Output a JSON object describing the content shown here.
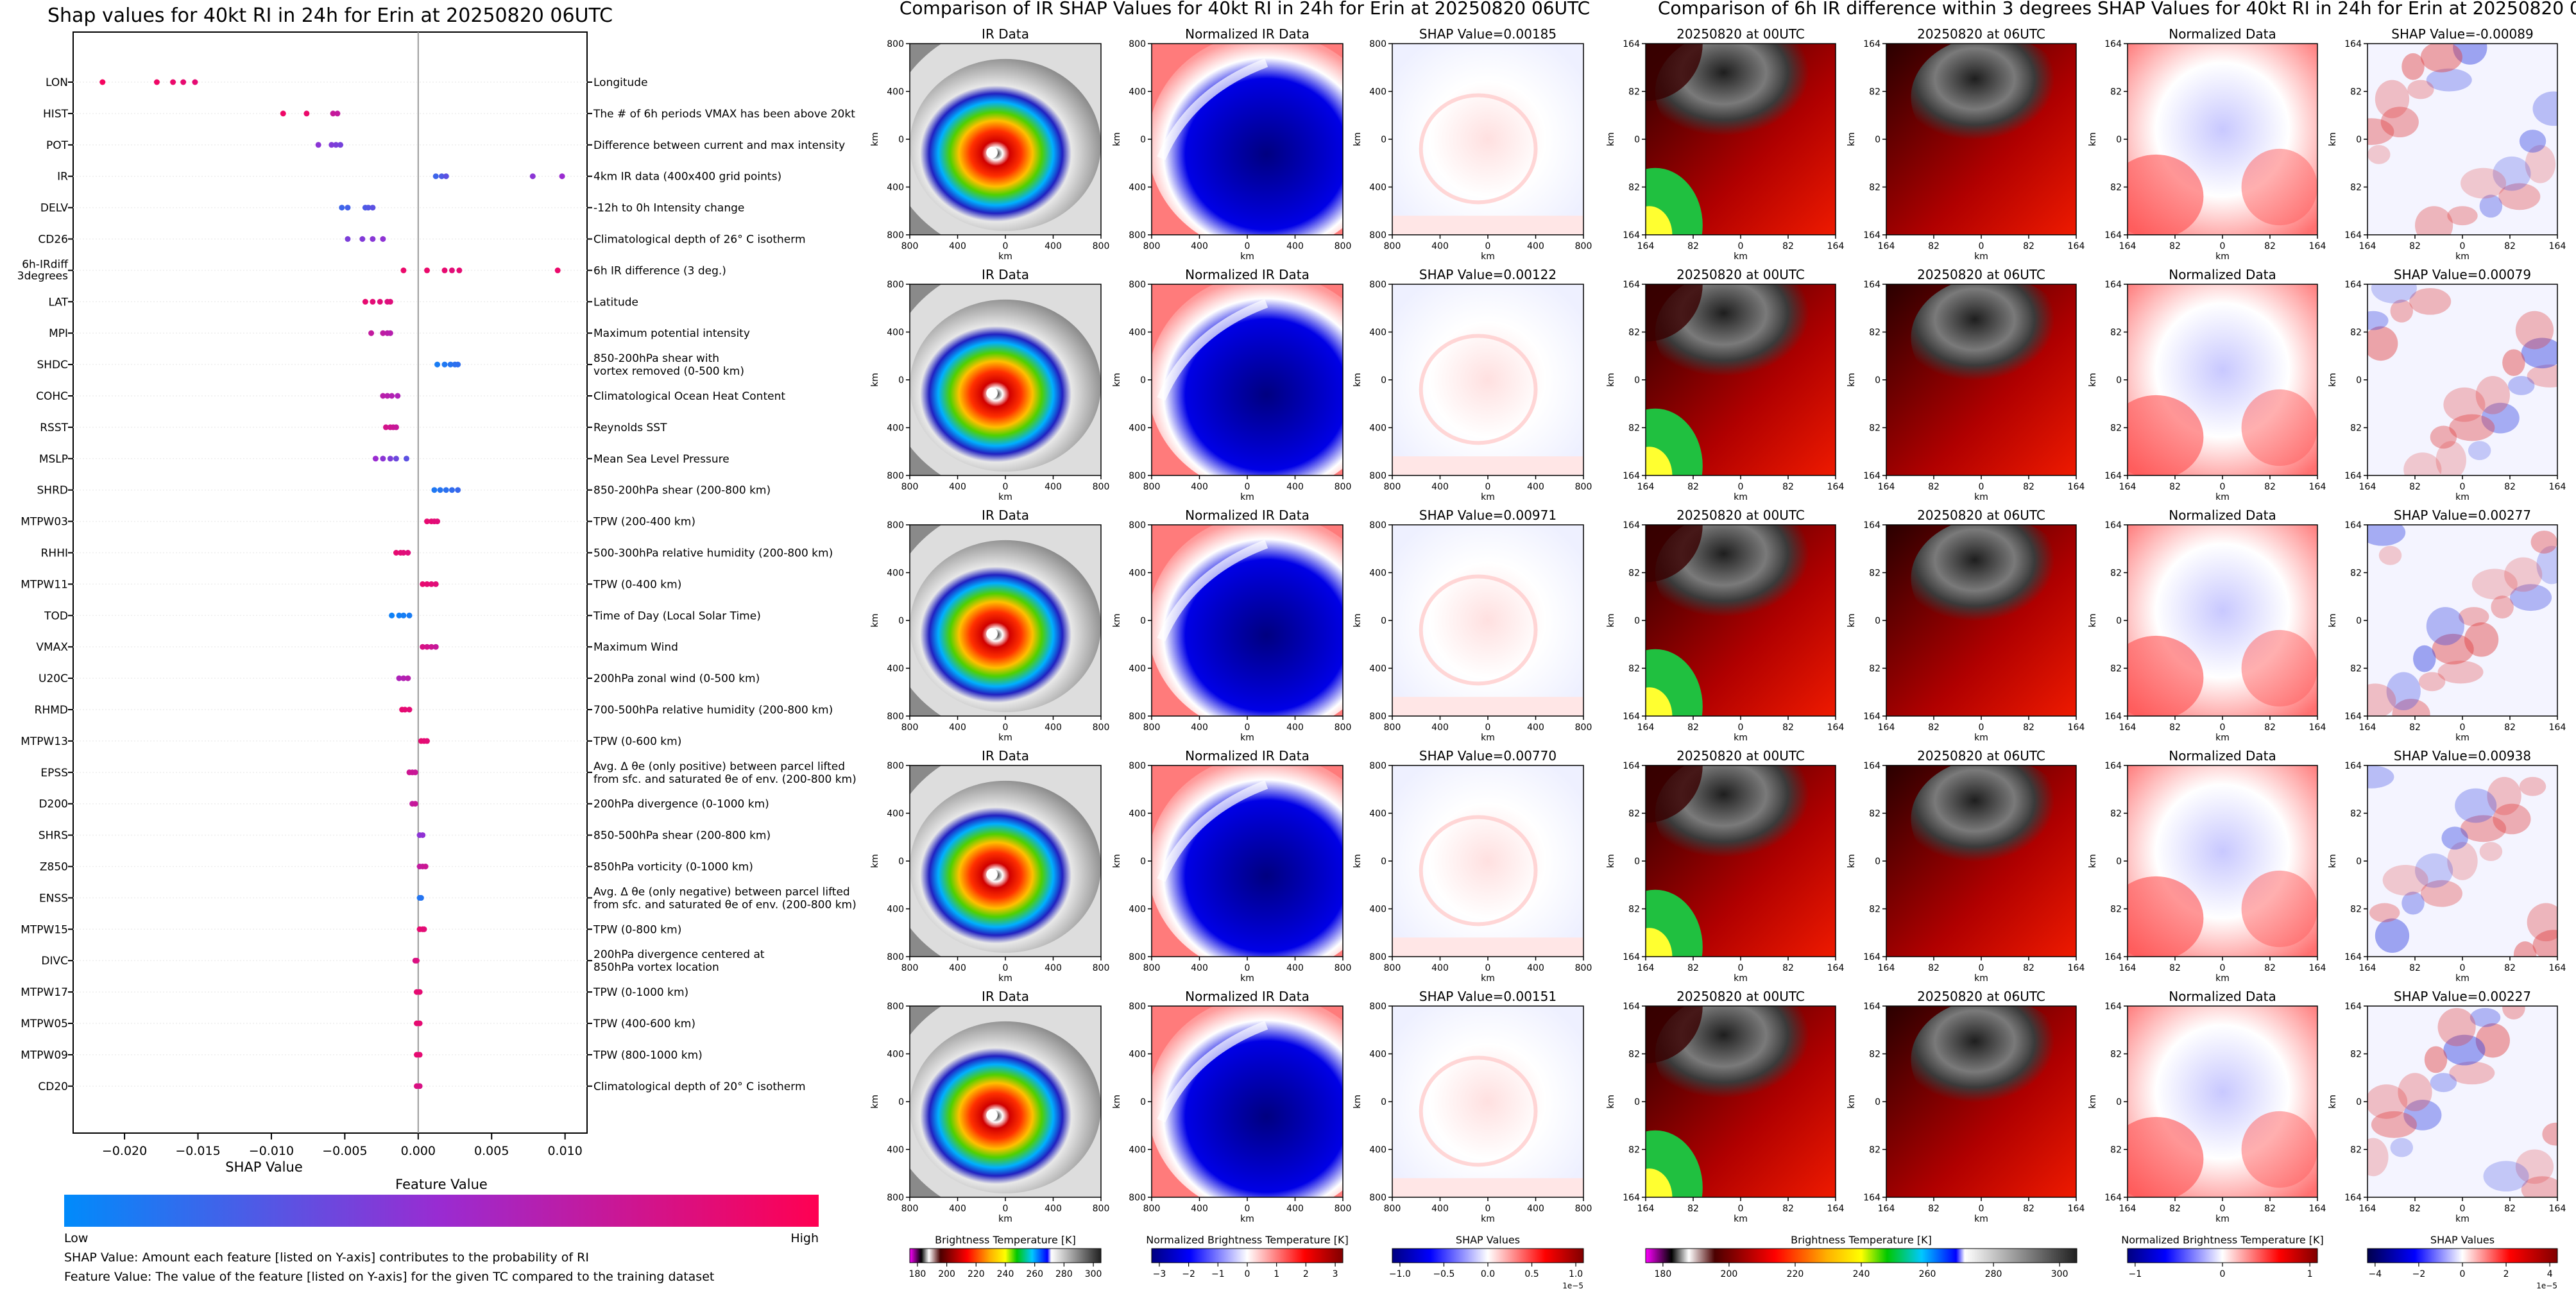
{
  "colors": {
    "feature_low": "#008bfb",
    "feature_mid": "#9a2bd1",
    "feature_high": "#ff0052",
    "shap_neg": "#0b1fd8",
    "shap_pos": "#cc0000"
  },
  "chart_data": [
    {
      "type": "scatter",
      "title": "Shap values for 40kt RI in 24h for Erin at 20250820 06UTC",
      "xlabel": "SHAP Value",
      "xlim": [
        -0.0235,
        0.0115
      ],
      "xticks": [
        -0.02,
        -0.015,
        -0.01,
        -0.005,
        0.0,
        0.005,
        0.01
      ],
      "xtick_labels": [
        "−0.020",
        "−0.015",
        "−0.010",
        "−0.005",
        "0.000",
        "0.005",
        "0.010"
      ],
      "grid": false,
      "features": [
        {
          "name": "LON",
          "desc": "Longitude",
          "values": [
            -0.0215,
            -0.0178,
            -0.0167,
            -0.016,
            -0.0152
          ],
          "fv": [
            0.95,
            0.92,
            0.9,
            0.88,
            0.87
          ]
        },
        {
          "name": "HIST",
          "desc": "The # of 6h periods VMAX has been above 20kt",
          "values": [
            -0.0092,
            -0.0076,
            -0.0058,
            -0.0055
          ],
          "fv": [
            0.92,
            0.9,
            0.72,
            0.7
          ]
        },
        {
          "name": "POT",
          "desc": "Difference between current and max intensity",
          "values": [
            -0.0068,
            -0.0059,
            -0.0056,
            -0.0053
          ],
          "fv": [
            0.45,
            0.42,
            0.4,
            0.38
          ]
        },
        {
          "name": "IR",
          "desc": "4km IR data (400x400 grid points)",
          "values": [
            0.0012,
            0.0016,
            0.0019,
            0.0078,
            0.0098
          ],
          "fv": [
            0.2,
            0.25,
            0.3,
            0.45,
            0.5
          ]
        },
        {
          "name": "DELV",
          "desc": "-12h to 0h Intensity change",
          "values": [
            -0.0052,
            -0.0048,
            -0.0036,
            -0.0034,
            -0.0031
          ],
          "fv": [
            0.2,
            0.22,
            0.25,
            0.27,
            0.3
          ]
        },
        {
          "name": "CD26",
          "desc": "Climatological depth of 26° C isotherm",
          "values": [
            -0.0048,
            -0.0038,
            -0.0031,
            -0.0024
          ],
          "fv": [
            0.4,
            0.42,
            0.44,
            0.46
          ]
        },
        {
          "name": "6h-IRdiff\n3degrees",
          "desc": "6h IR difference (3 deg.)",
          "values": [
            -0.001,
            0.0006,
            0.0018,
            0.0023,
            0.0028,
            0.0095
          ],
          "fv": [
            0.9,
            0.9,
            0.88,
            0.85,
            0.87,
            0.9
          ]
        },
        {
          "name": "LAT",
          "desc": "Latitude",
          "values": [
            -0.0036,
            -0.0031,
            -0.0026,
            -0.0021,
            -0.0019
          ],
          "fv": [
            0.88,
            0.86,
            0.85,
            0.83,
            0.84
          ]
        },
        {
          "name": "MPI",
          "desc": "Maximum potential intensity",
          "values": [
            -0.0032,
            -0.0024,
            -0.0021,
            -0.0019
          ],
          "fv": [
            0.7,
            0.68,
            0.66,
            0.64
          ]
        },
        {
          "name": "SHDC",
          "desc": "850-200hPa shear with\nvortex removed (0-500 km)",
          "values": [
            0.0013,
            0.0018,
            0.0022,
            0.0025,
            0.0027
          ],
          "fv": [
            0.08,
            0.1,
            0.12,
            0.14,
            0.15
          ]
        },
        {
          "name": "COHC",
          "desc": "Climatological Ocean Heat Content",
          "values": [
            -0.0024,
            -0.0021,
            -0.0018,
            -0.0014
          ],
          "fv": [
            0.65,
            0.64,
            0.62,
            0.6
          ]
        },
        {
          "name": "RSST",
          "desc": "Reynolds SST",
          "values": [
            -0.0022,
            -0.0019,
            -0.0017,
            -0.0015
          ],
          "fv": [
            0.78,
            0.76,
            0.74,
            0.72
          ]
        },
        {
          "name": "MSLP",
          "desc": "Mean Sea Level Pressure",
          "values": [
            -0.0029,
            -0.0024,
            -0.0019,
            -0.0015,
            -0.0008
          ],
          "fv": [
            0.5,
            0.45,
            0.4,
            0.35,
            0.3
          ]
        },
        {
          "name": "SHRD",
          "desc": "850-200hPa shear (200-800 km)",
          "values": [
            0.0011,
            0.0015,
            0.0019,
            0.0023,
            0.0027
          ],
          "fv": [
            0.1,
            0.12,
            0.14,
            0.16,
            0.18
          ]
        },
        {
          "name": "MTPW03",
          "desc": "TPW (200-400 km)",
          "values": [
            0.0006,
            0.0009,
            0.0011,
            0.0013
          ],
          "fv": [
            0.88,
            0.87,
            0.86,
            0.85
          ]
        },
        {
          "name": "RHHI",
          "desc": "500-300hPa relative humidity (200-800 km)",
          "values": [
            -0.0015,
            -0.0012,
            -0.001,
            -0.0007
          ],
          "fv": [
            0.88,
            0.86,
            0.85,
            0.84
          ]
        },
        {
          "name": "MTPW11",
          "desc": "TPW (0-400 km)",
          "values": [
            0.0003,
            0.0006,
            0.0009,
            0.0012
          ],
          "fv": [
            0.88,
            0.87,
            0.86,
            0.85
          ]
        },
        {
          "name": "TOD",
          "desc": "Time of Day (Local Solar Time)",
          "values": [
            -0.0018,
            -0.0013,
            -0.001,
            -0.0006
          ],
          "fv": [
            0.05,
            0.06,
            0.07,
            0.08
          ]
        },
        {
          "name": "VMAX",
          "desc": "Maximum Wind",
          "values": [
            0.0003,
            0.0006,
            0.0009,
            0.0012
          ],
          "fv": [
            0.8,
            0.78,
            0.75,
            0.72
          ]
        },
        {
          "name": "U20C",
          "desc": "200hPa zonal wind (0-500 km)",
          "values": [
            -0.0013,
            -0.001,
            -0.0007
          ],
          "fv": [
            0.6,
            0.62,
            0.64
          ]
        },
        {
          "name": "RHMD",
          "desc": "700-500hPa relative humidity (200-800 km)",
          "values": [
            -0.0011,
            -0.0009,
            -0.0006
          ],
          "fv": [
            0.88,
            0.87,
            0.86
          ]
        },
        {
          "name": "MTPW13",
          "desc": "TPW (0-600 km)",
          "values": [
            0.0002,
            0.0004,
            0.0006
          ],
          "fv": [
            0.88,
            0.87,
            0.86
          ]
        },
        {
          "name": "EPSS",
          "desc": "Avg. Δ θe (only positive) between parcel lifted\nfrom sfc. and saturated θe of env. (200-800 km)",
          "values": [
            -0.0006,
            -0.0004,
            -0.0002
          ],
          "fv": [
            0.75,
            0.74,
            0.73
          ]
        },
        {
          "name": "D200",
          "desc": "200hPa divergence (0-1000 km)",
          "values": [
            -0.0004,
            -0.0002
          ],
          "fv": [
            0.7,
            0.72
          ]
        },
        {
          "name": "SHRS",
          "desc": "850-500hPa shear (200-800 km)",
          "values": [
            0.0001,
            0.0003
          ],
          "fv": [
            0.45,
            0.47
          ]
        },
        {
          "name": "Z850",
          "desc": "850hPa vorticity (0-1000 km)",
          "values": [
            0.0001,
            0.0003,
            0.0005
          ],
          "fv": [
            0.7,
            0.72,
            0.74
          ]
        },
        {
          "name": "ENSS",
          "desc": "Avg. Δ θe (only negative) between parcel lifted\nfrom sfc. and saturated θe of env. (200-800 km)",
          "values": [
            0.0001,
            0.0002
          ],
          "fv": [
            0.1,
            0.12
          ]
        },
        {
          "name": "MTPW15",
          "desc": "TPW (0-800 km)",
          "values": [
            0.0001,
            0.0003,
            0.0004
          ],
          "fv": [
            0.88,
            0.87,
            0.86
          ]
        },
        {
          "name": "DIVC",
          "desc": "200hPa divergence centered at\n850hPa vortex location",
          "values": [
            -0.0002,
            -0.0001
          ],
          "fv": [
            0.8,
            0.82
          ]
        },
        {
          "name": "MTPW17",
          "desc": "TPW (0-1000 km)",
          "values": [
            -0.0001,
            0.0001
          ],
          "fv": [
            0.88,
            0.87
          ]
        },
        {
          "name": "MTPW05",
          "desc": "TPW (400-600 km)",
          "values": [
            -0.0001,
            0.0001
          ],
          "fv": [
            0.88,
            0.87
          ]
        },
        {
          "name": "MTPW09",
          "desc": "TPW (800-1000 km)",
          "values": [
            -0.0001,
            0.0001
          ],
          "fv": [
            0.88,
            0.87
          ]
        },
        {
          "name": "CD20",
          "desc": "Climatological depth of 20° C isotherm",
          "values": [
            -0.0001,
            0.0001
          ],
          "fv": [
            0.82,
            0.8
          ]
        }
      ],
      "legend": {
        "title": "Feature Value",
        "low": "Low",
        "high": "High"
      },
      "notes": [
        "SHAP Value: Amount each feature [listed on Y-axis] contributes to the probability of RI",
        "Feature Value: The value of the feature [listed on Y-axis] for the given TC compared to the training dataset"
      ]
    },
    {
      "type": "heatmap",
      "title": "Comparison of IR SHAP Values for 40kt RI in 24h for Erin at 20250820 06UTC",
      "panel_titles": [
        "IR Data",
        "Normalized IR Data"
      ],
      "shap_values": [
        "SHAP Value=0.00185",
        "SHAP Value=0.00122",
        "SHAP Value=0.00971",
        "SHAP Value=0.00770",
        "SHAP Value=0.00151"
      ],
      "xlabel": "km",
      "ylabel": "km",
      "tick_labels": [
        "800",
        "400",
        "0",
        "400",
        "800"
      ],
      "colorbars": [
        {
          "label": "Brightness Temperature [K]",
          "ticks": [
            "180",
            "200",
            "220",
            "240",
            "260",
            "280",
            "300"
          ]
        },
        {
          "label": "Normalized Brightness Temperature [K]",
          "ticks": [
            "−3",
            "−2",
            "−1",
            "0",
            "1",
            "2",
            "3"
          ]
        },
        {
          "label": "SHAP Values",
          "ticks": [
            "−1.0",
            "−0.5",
            "0.0",
            "0.5",
            "1.0"
          ],
          "offset": "1e−5"
        }
      ]
    },
    {
      "type": "heatmap",
      "title": "Comparison of 6h IR difference within 3 degrees SHAP Values for 40kt RI in 24h for Erin at 20250820 06UTC",
      "panel_titles": [
        "20250820 at 00UTC",
        "20250820 at 06UTC",
        "Normalized Data"
      ],
      "shap_values": [
        "SHAP Value=-0.00089",
        "SHAP Value=0.00079",
        "SHAP Value=0.00277",
        "SHAP Value=0.00938",
        "SHAP Value=0.00227"
      ],
      "xlabel": "km",
      "ylabel": "km",
      "tick_labels": [
        "164",
        "82",
        "0",
        "82",
        "164"
      ],
      "colorbars": [
        {
          "label": "Brightness Temperature [K]",
          "ticks": [
            "180",
            "200",
            "220",
            "240",
            "260",
            "280",
            "300"
          ]
        },
        {
          "label": "Normalized Brightness Temperature [K]",
          "ticks": [
            "−1",
            "0",
            "1"
          ]
        },
        {
          "label": "SHAP Values",
          "ticks": [
            "−4",
            "−2",
            "0",
            "2",
            "4"
          ],
          "offset": "1e−5"
        }
      ]
    }
  ]
}
